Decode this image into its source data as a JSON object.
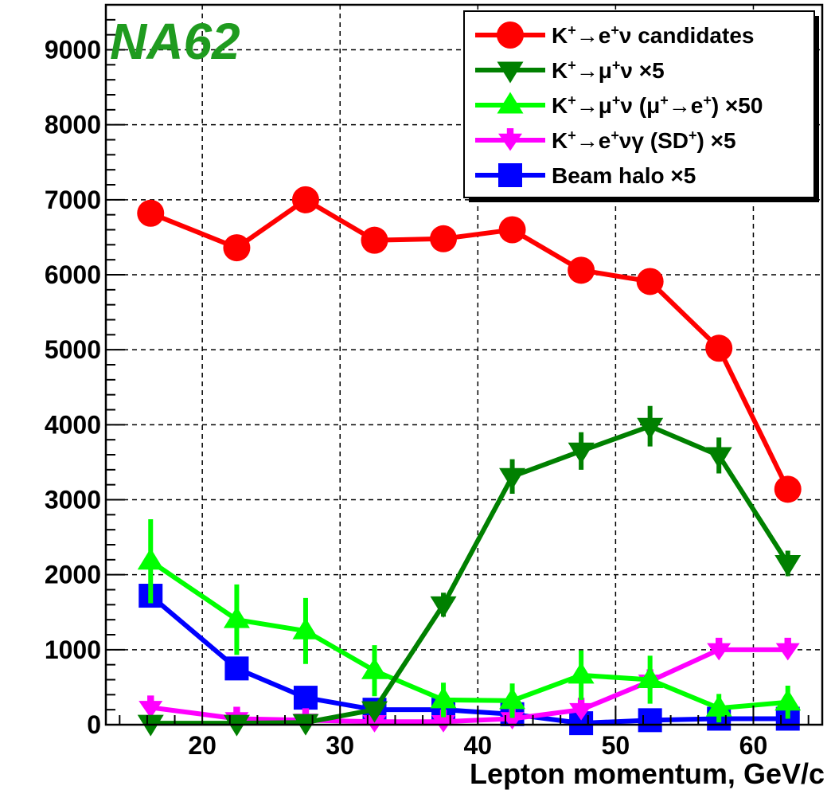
{
  "logo_text": "NA62",
  "logo_color": "#1f9b1f",
  "chart_data": {
    "type": "line",
    "xlabel": "Lepton momentum, GeV/c",
    "ylabel": "",
    "xlim": [
      13,
      65
    ],
    "ylim": [
      0,
      9600
    ],
    "grid": true,
    "legend_position": "top-right",
    "x": [
      16.25,
      22.5,
      27.5,
      32.5,
      37.5,
      42.5,
      47.5,
      52.5,
      57.5,
      62.5
    ],
    "xticks": [
      20,
      30,
      40,
      50,
      60
    ],
    "yticks": [
      0,
      1000,
      2000,
      3000,
      4000,
      5000,
      6000,
      7000,
      8000,
      9000
    ],
    "xtick_labels": [
      "20",
      "30",
      "40",
      "50",
      "60"
    ],
    "ytick_labels": [
      "0",
      "1000",
      "2000",
      "3000",
      "4000",
      "5000",
      "6000",
      "7000",
      "8000",
      "9000"
    ],
    "series": [
      {
        "name": "K⁺→e⁺ν candidates",
        "color": "#ff0000",
        "marker": "circle",
        "values": [
          6820,
          6360,
          7000,
          6460,
          6480,
          6600,
          6060,
          5910,
          5020,
          3140
        ],
        "errors": [
          80,
          80,
          85,
          80,
          80,
          80,
          80,
          75,
          70,
          55
        ]
      },
      {
        "name": "K⁺→μ⁺ν ×5",
        "color": "#008000",
        "marker": "triangle-down",
        "values": [
          20,
          20,
          30,
          200,
          1600,
          3310,
          3650,
          3980,
          3590,
          2150
        ],
        "errors": [
          10,
          10,
          15,
          60,
          160,
          230,
          250,
          270,
          240,
          170
        ]
      },
      {
        "name": "K⁺→μ⁺ν (μ⁺→e⁺) ×50",
        "color": "#00ff00",
        "marker": "triangle-up",
        "values": [
          2180,
          1400,
          1250,
          720,
          330,
          320,
          660,
          600,
          220,
          300
        ],
        "errors": [
          560,
          470,
          440,
          340,
          230,
          230,
          330,
          320,
          190,
          220
        ]
      },
      {
        "name": "K⁺→e⁺νγ (SD⁺) ×5",
        "color": "#ff00ff",
        "marker": "tri-star",
        "values": [
          230,
          80,
          60,
          40,
          40,
          80,
          200,
          580,
          1000,
          1000
        ],
        "errors": [
          40,
          25,
          20,
          15,
          15,
          25,
          40,
          70,
          90,
          90
        ]
      },
      {
        "name": "Beam halo ×5",
        "color": "#0000ff",
        "marker": "square",
        "values": [
          1720,
          750,
          360,
          200,
          200,
          140,
          20,
          60,
          80,
          80
        ],
        "errors": [
          120,
          80,
          55,
          40,
          40,
          35,
          15,
          20,
          25,
          25
        ]
      }
    ]
  },
  "legend": {
    "entries": [
      {
        "prefix": "K",
        "sup1": "+",
        "mid": "→e",
        "sup2": "+",
        "suffix": "ν candidates"
      },
      {
        "prefix": "K",
        "sup1": "+",
        "mid": "→μ",
        "sup2": "+",
        "suffix": "ν ×5"
      },
      {
        "prefix": "K",
        "sup1": "+",
        "mid": "→μ",
        "sup2": "+",
        "suffix": "ν (μ",
        "sup3": "+",
        "suffix2": "→e",
        "sup4": "+",
        "suffix3": ") ×50"
      },
      {
        "prefix": "K",
        "sup1": "+",
        "mid": "→e",
        "sup2": "+",
        "suffix": "νγ (SD",
        "sup3": "+",
        "suffix2": ") ×5"
      },
      {
        "prefix": "Beam halo ×5"
      }
    ]
  }
}
